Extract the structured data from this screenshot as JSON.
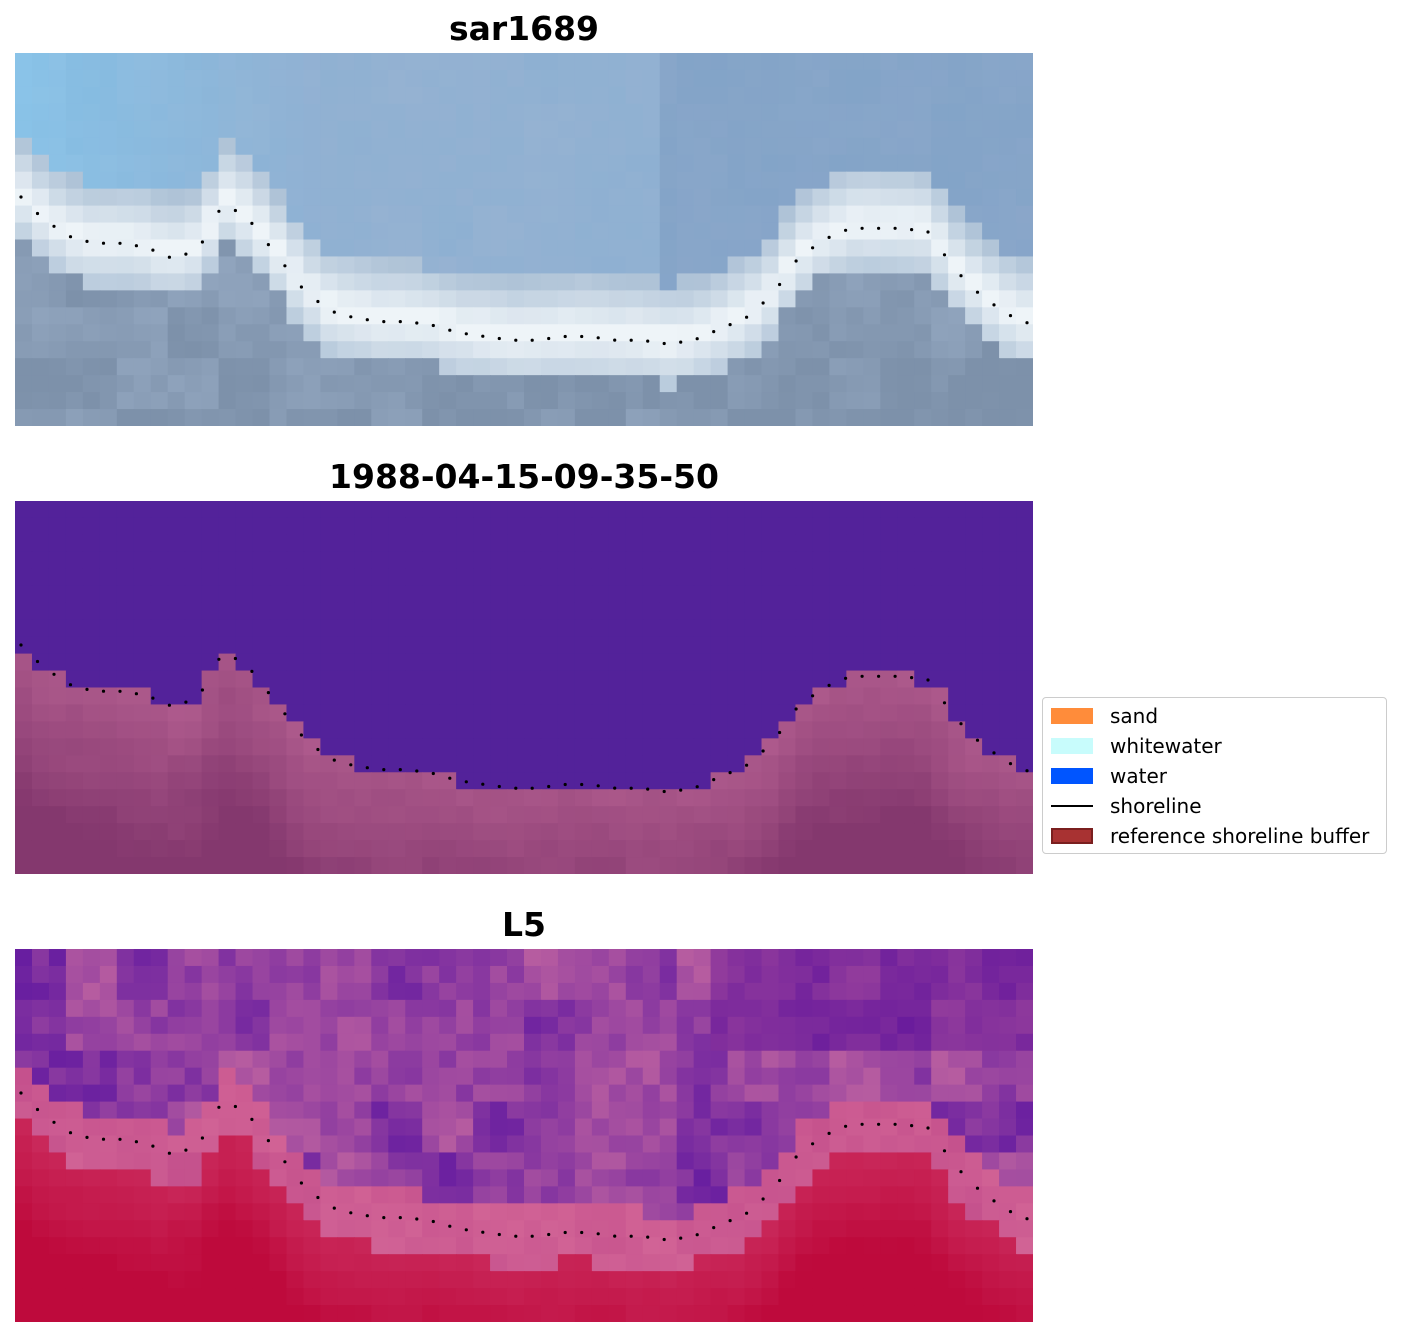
{
  "panels": [
    {
      "title": "sar1689",
      "kind": "rgb"
    },
    {
      "title": "1988-04-15-09-35-50",
      "kind": "classification"
    },
    {
      "title": "L5",
      "kind": "falsecolor"
    }
  ],
  "legend": {
    "items": [
      {
        "label": "sand",
        "color": "#ff8c3a",
        "type": "patch"
      },
      {
        "label": "whitewater",
        "color": "#c8fcfc",
        "type": "patch"
      },
      {
        "label": "water",
        "color": "#0055ff",
        "type": "patch"
      },
      {
        "label": "shoreline",
        "color": "#000000",
        "type": "line"
      },
      {
        "label": "reference shoreline buffer",
        "color": "#a83232",
        "type": "patch"
      }
    ]
  },
  "chart_data": {
    "type": "heatmap",
    "grid": false,
    "legend_position": "center-right",
    "shoreline_profile": [
      0.37,
      0.44,
      0.49,
      0.51,
      0.51,
      0.52,
      0.55,
      0.53,
      0.4,
      0.45,
      0.54,
      0.63,
      0.69,
      0.71,
      0.72,
      0.72,
      0.73,
      0.75,
      0.76,
      0.77,
      0.77,
      0.76,
      0.76,
      0.77,
      0.77,
      0.78,
      0.77,
      0.74,
      0.71,
      0.65,
      0.55,
      0.5,
      0.47,
      0.47,
      0.47,
      0.48,
      0.58,
      0.65,
      0.7,
      0.73
    ]
  }
}
